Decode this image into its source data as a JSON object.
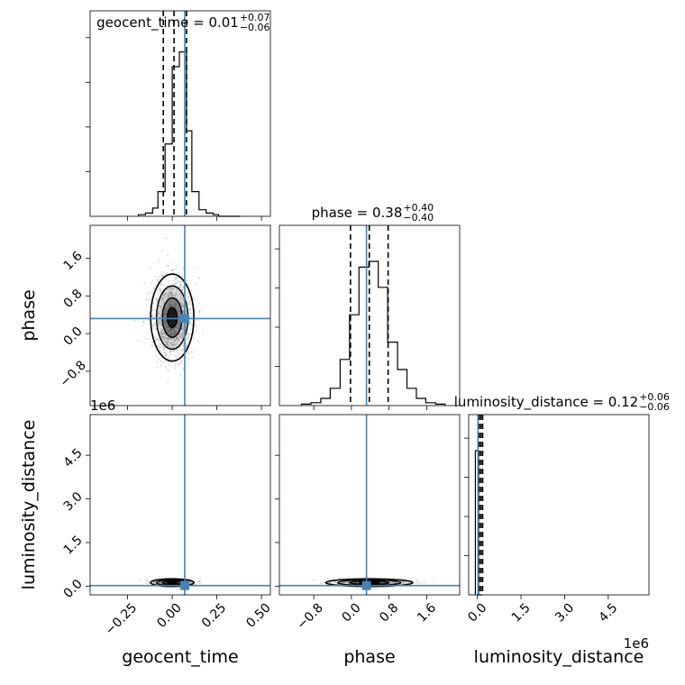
{
  "colors": {
    "truth": "#4682b4",
    "histogram": "#000000",
    "grid": "#b0b0b0",
    "samples": "#8a8a8a"
  },
  "parameters": [
    "geocent_time",
    "phase",
    "luminosity_distance"
  ],
  "titles": [
    {
      "name": "geocent_time",
      "text": "geocent_time = 0.01",
      "sup": "+0.07",
      "sub": "−0.06"
    },
    {
      "name": "phase",
      "text": "phase = 0.38",
      "sup": "+0.40",
      "sub": "−0.40"
    },
    {
      "name": "luminosity_distance",
      "text": "luminosity_distance = 0.12",
      "sup": "+0.06",
      "sub": "−0.06"
    }
  ],
  "offset_labels": {
    "lum_y": "1e6",
    "lum_x": "1e6"
  },
  "chart_data": {
    "type": "corner",
    "truths": {
      "geocent_time": 0.07,
      "phase": 0.32,
      "luminosity_distance": 0.02
    },
    "ranges": {
      "geocent_time": [
        -0.46,
        0.55
      ],
      "phase": [
        -1.53,
        2.3
      ],
      "luminosity_distance": [
        -0.3,
        5.9
      ]
    },
    "ticks": {
      "geocent_time": {
        "values": [
          -0.25,
          0.0,
          0.25,
          0.5
        ],
        "labels": [
          "−0.25",
          "0.00",
          "0.25",
          "0.50"
        ]
      },
      "phase": {
        "values": [
          -0.8,
          0.0,
          0.8,
          1.6
        ],
        "labels": [
          "−0.8",
          "0.0",
          "0.8",
          "1.6"
        ]
      },
      "luminosity_distance": {
        "values": [
          0.0,
          1.5,
          3.0,
          4.5
        ],
        "labels": [
          "0.0",
          "1.5",
          "3.0",
          "4.5"
        ]
      }
    },
    "quantiles": {
      "geocent_time": [
        -0.05,
        0.01,
        0.08
      ],
      "phase": [
        -0.02,
        0.38,
        0.78
      ],
      "luminosity_distance": [
        0.06,
        0.12,
        0.18
      ]
    },
    "histograms": {
      "geocent_time": {
        "edges": [
          -0.19,
          -0.15,
          -0.11,
          -0.08,
          -0.04,
          0.0,
          0.04,
          0.08,
          0.11,
          0.15,
          0.19,
          0.23,
          0.26,
          0.3,
          0.34,
          0.38
        ],
        "counts": [
          0.01,
          0.02,
          0.05,
          0.15,
          0.44,
          0.91,
          1.0,
          0.52,
          0.15,
          0.04,
          0.02,
          0.01,
          0.0,
          0.0,
          0.0
        ]
      },
      "phase": {
        "edges": [
          -1.06,
          -0.86,
          -0.65,
          -0.45,
          -0.24,
          -0.04,
          0.16,
          0.37,
          0.57,
          0.77,
          0.98,
          1.18,
          1.38,
          1.58,
          1.79,
          1.99
        ],
        "counts": [
          0.01,
          0.02,
          0.05,
          0.12,
          0.32,
          0.63,
          0.96,
          1.0,
          0.82,
          0.44,
          0.25,
          0.12,
          0.05,
          0.02,
          0.01
        ]
      },
      "luminosity_distance": {
        "edges": [
          -0.07,
          0.04,
          0.16
        ],
        "counts": [
          1.0,
          0.0
        ]
      }
    },
    "contours_2d": {
      "phase_vs_geocent_time": {
        "center": [
          0.0,
          0.34
        ],
        "sigma": [
          0.055,
          0.42
        ]
      },
      "luminosity_distance_vs_geocent_time": {
        "center": [
          0.0,
          0.12
        ],
        "sigma": [
          0.055,
          0.06
        ]
      },
      "luminosity_distance_vs_phase": {
        "center": [
          0.38,
          0.12
        ],
        "sigma": [
          0.42,
          0.06
        ]
      }
    }
  }
}
